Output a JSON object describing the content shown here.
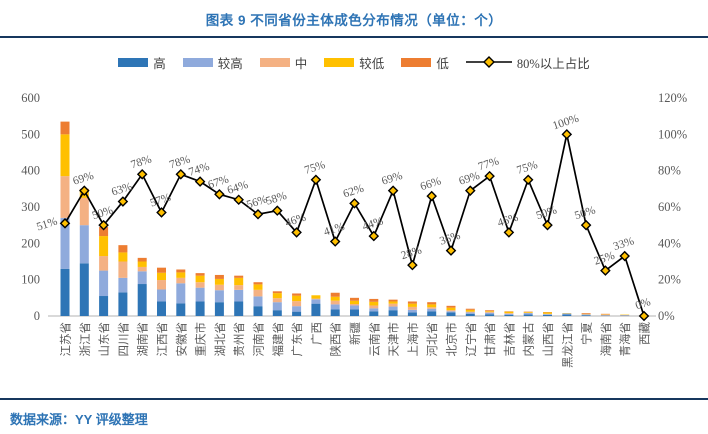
{
  "header": {
    "title": "图表 9 不同省份主体成色分布情况（单位：个）"
  },
  "footer": {
    "source": "数据来源：YY 评级整理"
  },
  "palette": {
    "accent_blue": "#2E74B5",
    "rule_navy": "#17375E",
    "axis_text": "#595959",
    "baseline_gray": "#D9D9D9"
  },
  "chart_data": {
    "type": "bar",
    "subtype": "stacked-bar-with-line",
    "title": "图表 9 不同省份主体成色分布情况（单位：个）",
    "xlabel": "",
    "ylabel_left": "",
    "ylabel_right": "",
    "legend_position": "top",
    "grid": false,
    "left_axis": {
      "min": 0,
      "max": 600,
      "step": 100
    },
    "right_axis": {
      "min": 0,
      "max": 120,
      "step": 20,
      "suffix": "%"
    },
    "categories": [
      "江苏省",
      "浙江省",
      "山东省",
      "四川省",
      "湖南省",
      "江西省",
      "安徽省",
      "重庆市",
      "湖北省",
      "贵州省",
      "河南省",
      "福建省",
      "广东省",
      "广西",
      "陕西省",
      "新疆",
      "云南省",
      "天津市",
      "上海市",
      "河北省",
      "北京市",
      "辽宁省",
      "甘肃省",
      "吉林省",
      "内蒙古",
      "山西省",
      "黑龙江省",
      "宁夏",
      "海南省",
      "青海省",
      "西藏"
    ],
    "series": [
      {
        "name": "高",
        "color": "#2E75B6",
        "values": [
          130,
          145,
          55,
          65,
          88,
          40,
          35,
          40,
          38,
          40,
          27,
          16,
          12,
          34,
          18,
          18,
          13,
          16,
          10,
          13,
          10,
          6,
          5,
          3,
          4,
          3,
          4,
          2,
          1,
          1,
          0
        ]
      },
      {
        "name": "较高",
        "color": "#8FAADC",
        "values": [
          140,
          105,
          70,
          40,
          35,
          33,
          55,
          38,
          33,
          32,
          27,
          22,
          15,
          12,
          14,
          11,
          8,
          10,
          7,
          7,
          3,
          4,
          4,
          3,
          4,
          2,
          3,
          2,
          1,
          1,
          1
        ]
      },
      {
        "name": "中",
        "color": "#F4B183",
        "values": [
          115,
          75,
          40,
          45,
          12,
          26,
          15,
          15,
          15,
          13,
          18,
          11,
          14,
          2,
          10,
          4,
          8,
          8,
          8,
          4,
          3,
          2,
          3,
          2,
          1,
          1,
          0,
          1,
          2,
          1,
          1
        ]
      },
      {
        "name": "较低",
        "color": "#FFC000",
        "values": [
          115,
          20,
          55,
          25,
          15,
          20,
          15,
          18,
          16,
          20,
          15,
          14,
          15,
          9,
          11,
          9,
          10,
          6,
          9,
          8,
          7,
          5,
          2,
          4,
          2,
          4,
          1,
          1,
          1,
          1,
          1
        ]
      },
      {
        "name": "低",
        "color": "#ED7D31",
        "values": [
          35,
          5,
          25,
          20,
          10,
          14,
          8,
          7,
          11,
          6,
          6,
          5,
          6,
          0,
          11,
          8,
          8,
          5,
          6,
          6,
          5,
          3,
          2,
          1,
          1,
          1,
          0,
          2,
          1,
          0,
          0
        ]
      }
    ],
    "line": {
      "name": "80%以上占比",
      "color": "#000000",
      "marker_fill": "#FFC000",
      "values": [
        51,
        69,
        50,
        63,
        78,
        57,
        78,
        74,
        67,
        64,
        56,
        58,
        46,
        75,
        41,
        62,
        44,
        69,
        28,
        66,
        36,
        69,
        77,
        46,
        75,
        50,
        100,
        50,
        25,
        33,
        0
      ]
    }
  }
}
